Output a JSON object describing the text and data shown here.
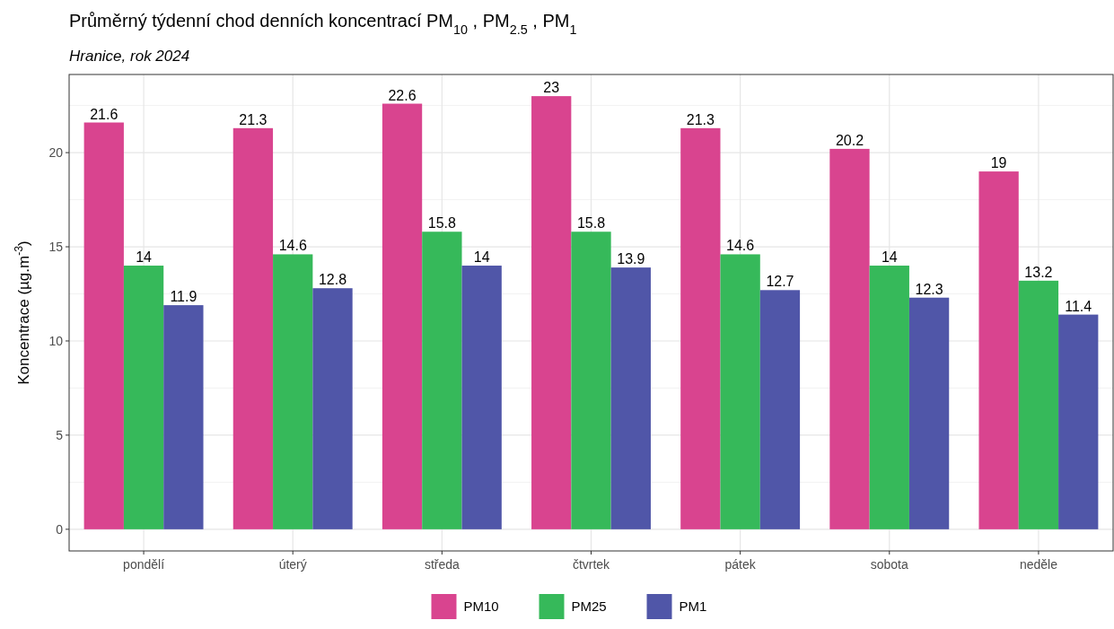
{
  "chart_data": {
    "type": "bar",
    "title": "Průměrný týdenní chod denních koncentrací PM$_{10}$ , PM$_{2.5}$ , PM$_{1}$",
    "subtitle": "Hranice, rok 2024",
    "ylabel": "Koncentrace (µg.m$^{-3}$)",
    "categories": [
      "pondělí",
      "úterý",
      "středa",
      "čtvrtek",
      "pátek",
      "sobota",
      "neděle"
    ],
    "series": [
      {
        "name": "PM10",
        "color": "#d9448f",
        "values": [
          21.6,
          21.3,
          22.6,
          23,
          21.3,
          20.2,
          19
        ]
      },
      {
        "name": "PM25",
        "color": "#36b95a",
        "values": [
          14,
          14.6,
          15.8,
          15.8,
          14.6,
          14,
          13.2
        ]
      },
      {
        "name": "PM1",
        "color": "#5056a8",
        "values": [
          11.9,
          12.8,
          14,
          13.9,
          12.7,
          12.3,
          11.4
        ]
      }
    ],
    "ylim": [
      -1.15,
      24.15
    ],
    "yticks": [
      0,
      5,
      10,
      15,
      20
    ],
    "grid": true,
    "legend": "bottom",
    "data_labels": true
  }
}
